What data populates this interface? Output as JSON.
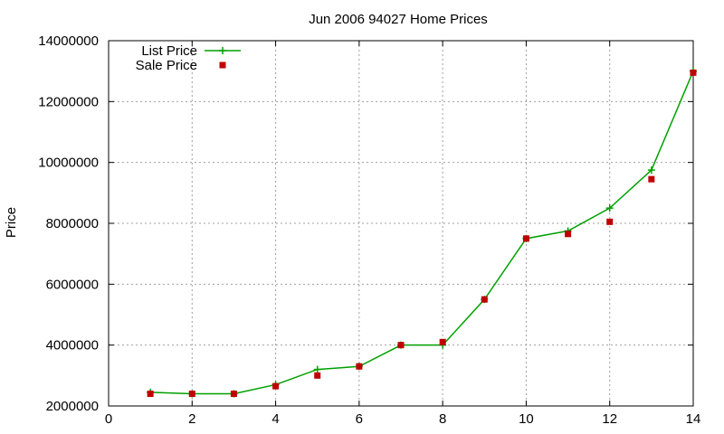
{
  "chart_data": {
    "type": "line",
    "title": "Jun 2006 94027 Home Prices",
    "xlabel": "",
    "ylabel": "Price",
    "xlim": [
      0,
      14
    ],
    "ylim": [
      2000000,
      14000000
    ],
    "xticks": [
      0,
      2,
      4,
      6,
      8,
      10,
      12,
      14
    ],
    "yticks": [
      2000000,
      4000000,
      6000000,
      8000000,
      10000000,
      12000000,
      14000000
    ],
    "grid": true,
    "legend_position": "top-left",
    "series": [
      {
        "name": "List Price",
        "style": "line-with-plus-markers",
        "color": "#00a000",
        "x": [
          1,
          2,
          3,
          4,
          5,
          6,
          7,
          8,
          9,
          10,
          11,
          12,
          13,
          14
        ],
        "y": [
          2450000,
          2400000,
          2400000,
          2700000,
          3200000,
          3300000,
          4000000,
          4000000,
          5500000,
          7500000,
          7750000,
          8500000,
          9750000,
          13000000
        ]
      },
      {
        "name": "Sale Price",
        "style": "square-points",
        "color": "#c00000",
        "x": [
          1,
          2,
          3,
          4,
          5,
          6,
          7,
          8,
          9,
          10,
          11,
          12,
          13,
          14
        ],
        "y": [
          2400000,
          2400000,
          2400000,
          2650000,
          3000000,
          3300000,
          4000000,
          4100000,
          5500000,
          7500000,
          7650000,
          8050000,
          9450000,
          12950000
        ]
      }
    ]
  }
}
